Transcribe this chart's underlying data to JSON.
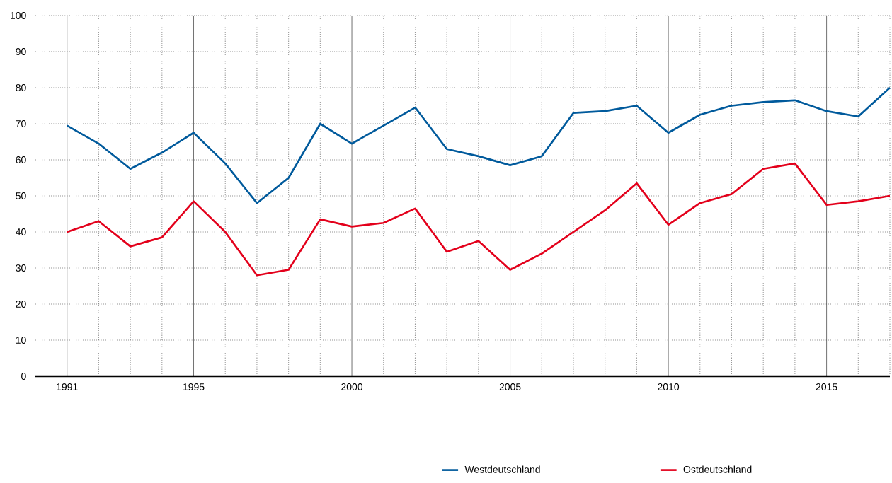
{
  "chart_data": {
    "type": "line",
    "x": [
      1991,
      1992,
      1993,
      1994,
      1995,
      1996,
      1997,
      1998,
      1999,
      2000,
      2001,
      2002,
      2003,
      2004,
      2005,
      2006,
      2007,
      2008,
      2009,
      2010,
      2011,
      2012,
      2013,
      2014,
      2015,
      2016,
      2017
    ],
    "series": [
      {
        "name": "Westdeutschland",
        "color": "#005a9c",
        "values": [
          69.5,
          64.5,
          57.5,
          62,
          67.5,
          59,
          48,
          55,
          70,
          64.5,
          69.5,
          74.5,
          63,
          61,
          58.5,
          61,
          73,
          73.5,
          75,
          67.5,
          72.5,
          75,
          76,
          76.5,
          73.5,
          72,
          80
        ]
      },
      {
        "name": "Ostdeutschland",
        "color": "#e3001b",
        "values": [
          40,
          43,
          36,
          38.5,
          48.5,
          40,
          28,
          29.5,
          43.5,
          41.5,
          42.5,
          46.5,
          34.5,
          37.5,
          29.5,
          34,
          40,
          46,
          53.5,
          42,
          48,
          50.5,
          57.5,
          59,
          47.5,
          48.5,
          50
        ]
      }
    ],
    "xlim": [
      1990,
      2017
    ],
    "xticks": [
      1991,
      {
        "value": 1992,
        "label": null
      },
      {
        "value": 1993,
        "label": null
      },
      {
        "value": 1994,
        "label": null
      },
      1995,
      {
        "value": 1996,
        "label": null
      },
      {
        "value": 1997,
        "label": null
      },
      {
        "value": 1998,
        "label": null
      },
      {
        "value": 1999,
        "label": null
      },
      2000,
      {
        "value": 2001,
        "label": null
      },
      {
        "value": 2002,
        "label": null
      },
      {
        "value": 2003,
        "label": null
      },
      {
        "value": 2004,
        "label": null
      },
      2005,
      {
        "value": 2006,
        "label": null
      },
      {
        "value": 2007,
        "label": null
      },
      {
        "value": 2008,
        "label": null
      },
      {
        "value": 2009,
        "label": null
      },
      2010,
      {
        "value": 2011,
        "label": null
      },
      {
        "value": 2012,
        "label": null
      },
      {
        "value": 2013,
        "label": null
      },
      {
        "value": 2014,
        "label": null
      },
      2015,
      {
        "value": 2016,
        "label": null
      },
      {
        "value": 2017,
        "label": null
      }
    ],
    "ylim": [
      0,
      100
    ],
    "yticks": [
      0,
      10,
      20,
      30,
      40,
      50,
      60,
      70,
      80,
      90,
      100
    ],
    "grid": true,
    "legend": "bottom",
    "line_style": "solid"
  }
}
